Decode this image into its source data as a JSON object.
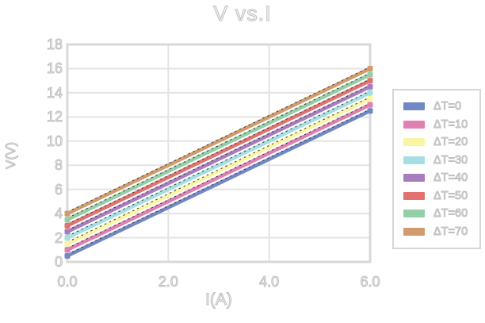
{
  "chart": {
    "title_label": "V vs.I",
    "grid": true,
    "legend_position": "right-outside",
    "frame_color": "#d8d8d8",
    "gridline_color": "#e3e3e3",
    "text_outline_color": "#bfbfbf",
    "trendline_dash_color": "#333333"
  },
  "chart_data": {
    "type": "line",
    "title": "V vs.I",
    "xlabel": "I(A)",
    "ylabel": "V(V)",
    "xlim": [
      0,
      6
    ],
    "ylim": [
      0,
      18
    ],
    "x": [
      0,
      6
    ],
    "x_ticks": {
      "values": [
        0,
        2,
        4,
        6
      ],
      "labels": [
        "0.0",
        "2.0",
        "4.0",
        "6.0"
      ]
    },
    "y_ticks": {
      "values": [
        0,
        2,
        4,
        6,
        8,
        10,
        12,
        14,
        16,
        18
      ],
      "labels": [
        "0",
        "2",
        "4",
        "6",
        "8",
        "10",
        "12",
        "14",
        "16",
        "18"
      ]
    },
    "series": [
      {
        "name": "ΔT=0",
        "color": "#7288c4",
        "values": [
          0.5,
          12.5
        ]
      },
      {
        "name": "ΔT=10",
        "color": "#e07fb2",
        "values": [
          1.0,
          13.0
        ]
      },
      {
        "name": "ΔT=20",
        "color": "#f9f6a3",
        "values": [
          1.5,
          13.5
        ]
      },
      {
        "name": "ΔT=30",
        "color": "#a5dfe2",
        "values": [
          2.0,
          14.0
        ]
      },
      {
        "name": "ΔT=40",
        "color": "#a87dbf",
        "values": [
          2.5,
          14.5
        ]
      },
      {
        "name": "ΔT=50",
        "color": "#e27170",
        "values": [
          3.0,
          15.0
        ]
      },
      {
        "name": "ΔT=60",
        "color": "#93cfa6",
        "values": [
          3.5,
          15.5
        ]
      },
      {
        "name": "ΔT=70",
        "color": "#d29b6d",
        "values": [
          4.0,
          16.0
        ]
      }
    ],
    "style": {
      "marker": "square",
      "line_width": 4.5,
      "dashed_trendline_overlay": true
    },
    "legend_entries": [
      "ΔT=0",
      "ΔT=10",
      "ΔT=20",
      "ΔT=30",
      "ΔT=40",
      "ΔT=50",
      "ΔT=60",
      "ΔT=70"
    ]
  }
}
